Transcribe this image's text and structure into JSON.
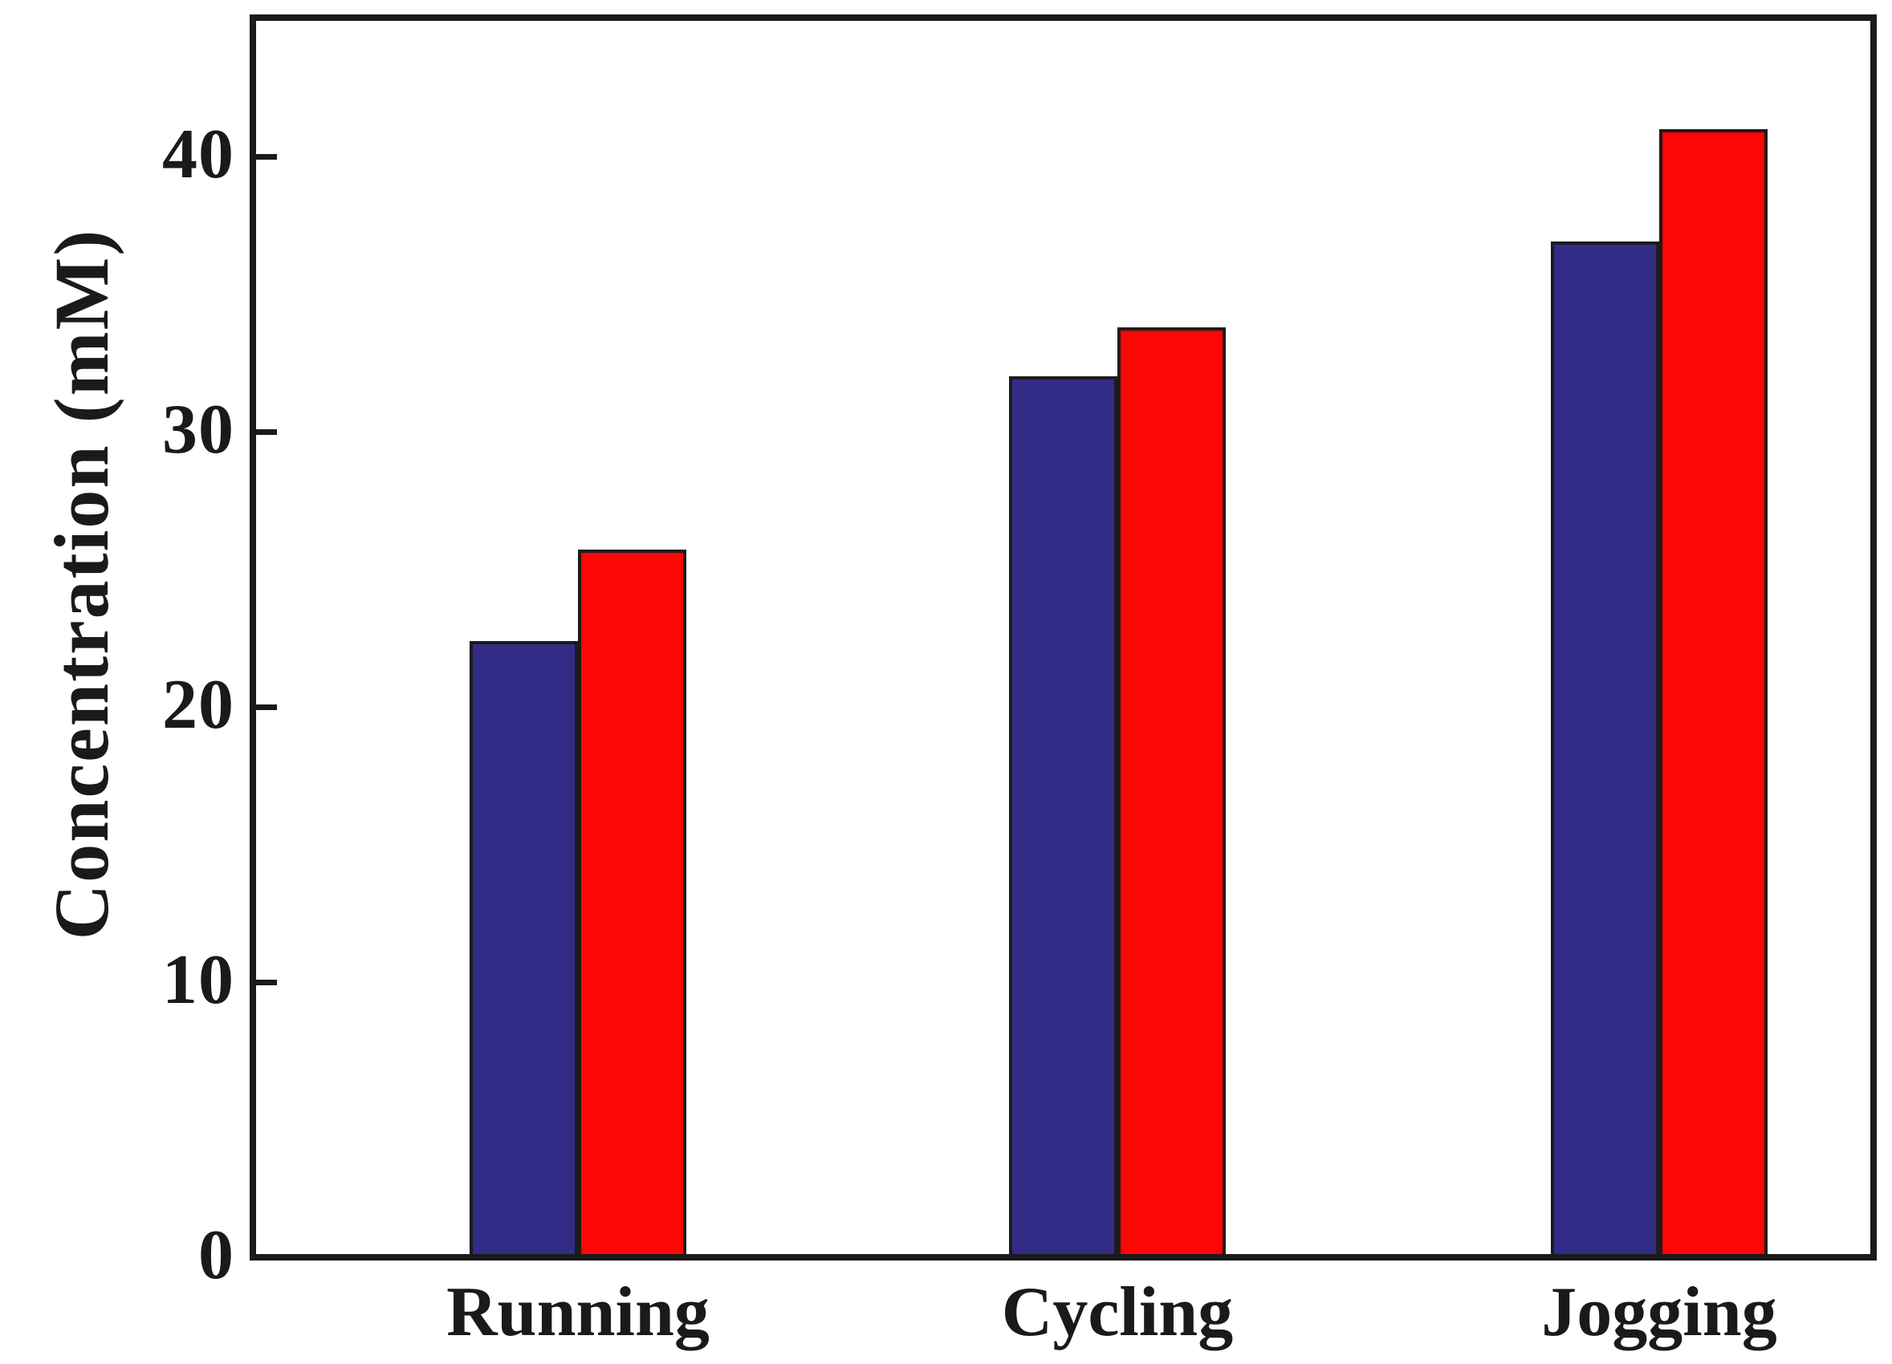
{
  "chart_data": {
    "type": "bar",
    "title": "",
    "xlabel": "",
    "ylabel": "Concentration (mM)",
    "categories": [
      "Running",
      "Cycling",
      "Jogging"
    ],
    "series": [
      {
        "name": "blue-series",
        "color": "#332c87",
        "values": [
          22.4,
          32.0,
          36.9
        ]
      },
      {
        "name": "red-series",
        "color": "#fc0606",
        "values": [
          25.7,
          33.8,
          41.0
        ]
      }
    ],
    "ylim": [
      0,
      45
    ],
    "yticks": [
      0,
      10,
      20,
      30,
      40
    ],
    "grid": false,
    "legend": "none",
    "bar_outline_color": "#1c1c1c",
    "axis_color": "#1a1a1a"
  }
}
